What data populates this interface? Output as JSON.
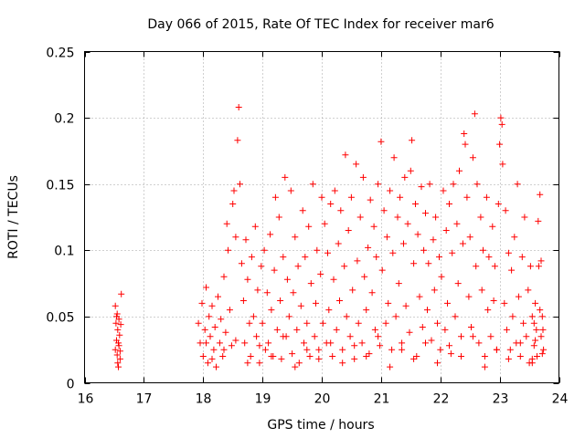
{
  "chart_data": {
    "type": "scatter",
    "title": "Day 066 of 2015, Rate Of TEC Index for receiver mar6",
    "xlabel": "GPS time / hours",
    "ylabel": "ROTI / TECUs",
    "xlim": [
      16,
      24
    ],
    "ylim": [
      0,
      0.25
    ],
    "x_ticks": [
      "16",
      "17",
      "18",
      "19",
      "20",
      "21",
      "22",
      "23",
      "24"
    ],
    "y_ticks": [
      "0",
      "0.05",
      "0.1",
      "0.15",
      "0.2",
      "0.25"
    ],
    "grid": true,
    "marker": "+",
    "series_color": "#ff0000",
    "series": [
      {
        "name": "ROTI",
        "points": [
          [
            16.52,
            0.058
          ],
          [
            16.53,
            0.045
          ],
          [
            16.54,
            0.032
          ],
          [
            16.55,
            0.052
          ],
          [
            16.55,
            0.021
          ],
          [
            16.56,
            0.04
          ],
          [
            16.57,
            0.012
          ],
          [
            16.58,
            0.048
          ],
          [
            16.58,
            0.028
          ],
          [
            16.59,
            0.036
          ],
          [
            16.6,
            0.018
          ],
          [
            16.61,
            0.044
          ],
          [
            16.62,
            0.067
          ],
          [
            16.52,
            0.025
          ],
          [
            16.54,
            0.05
          ],
          [
            16.57,
            0.03
          ],
          [
            16.6,
            0.024
          ],
          [
            16.56,
            0.015
          ],
          [
            17.92,
            0.045
          ],
          [
            17.95,
            0.03
          ],
          [
            17.98,
            0.06
          ],
          [
            18.0,
            0.02
          ],
          [
            18.03,
            0.04
          ],
          [
            18.05,
            0.072
          ],
          [
            18.08,
            0.015
          ],
          [
            18.1,
            0.05
          ],
          [
            18.12,
            0.035
          ],
          [
            18.15,
            0.058
          ],
          [
            18.18,
            0.025
          ],
          [
            18.2,
            0.042
          ],
          [
            18.22,
            0.012
          ],
          [
            18.25,
            0.065
          ],
          [
            18.28,
            0.03
          ],
          [
            18.3,
            0.048
          ],
          [
            18.33,
            0.02
          ],
          [
            18.35,
            0.08
          ],
          [
            18.38,
            0.038
          ],
          [
            18.4,
            0.12
          ],
          [
            18.42,
            0.1
          ],
          [
            18.45,
            0.055
          ],
          [
            18.48,
            0.028
          ],
          [
            18.5,
            0.135
          ],
          [
            18.52,
            0.145
          ],
          [
            18.55,
            0.11
          ],
          [
            18.58,
            0.183
          ],
          [
            18.6,
            0.208
          ],
          [
            18.62,
            0.15
          ],
          [
            18.65,
            0.09
          ],
          [
            18.68,
            0.062
          ],
          [
            18.7,
            0.03
          ],
          [
            18.72,
            0.108
          ],
          [
            18.75,
            0.078
          ],
          [
            18.78,
            0.045
          ],
          [
            18.8,
            0.02
          ],
          [
            18.82,
            0.095
          ],
          [
            18.85,
            0.05
          ],
          [
            18.88,
            0.118
          ],
          [
            18.9,
            0.035
          ],
          [
            18.92,
            0.07
          ],
          [
            18.95,
            0.015
          ],
          [
            18.98,
            0.088
          ],
          [
            19.0,
            0.045
          ],
          [
            19.03,
            0.1
          ],
          [
            19.05,
            0.025
          ],
          [
            19.08,
            0.068
          ],
          [
            19.1,
            0.03
          ],
          [
            19.13,
            0.112
          ],
          [
            19.15,
            0.055
          ],
          [
            19.18,
            0.02
          ],
          [
            19.2,
            0.085
          ],
          [
            19.22,
            0.14
          ],
          [
            19.25,
            0.04
          ],
          [
            19.28,
            0.125
          ],
          [
            19.3,
            0.062
          ],
          [
            19.32,
            0.018
          ],
          [
            19.35,
            0.095
          ],
          [
            19.38,
            0.155
          ],
          [
            19.4,
            0.035
          ],
          [
            19.42,
            0.078
          ],
          [
            19.45,
            0.05
          ],
          [
            19.48,
            0.145
          ],
          [
            19.5,
            0.022
          ],
          [
            19.52,
            0.068
          ],
          [
            19.55,
            0.11
          ],
          [
            19.58,
            0.04
          ],
          [
            19.6,
            0.088
          ],
          [
            19.62,
            0.015
          ],
          [
            19.65,
            0.058
          ],
          [
            19.68,
            0.13
          ],
          [
            19.7,
            0.03
          ],
          [
            19.72,
            0.095
          ],
          [
            19.75,
            0.045
          ],
          [
            19.78,
            0.118
          ],
          [
            19.8,
            0.02
          ],
          [
            19.82,
            0.075
          ],
          [
            19.85,
            0.15
          ],
          [
            19.88,
            0.035
          ],
          [
            19.9,
            0.06
          ],
          [
            19.92,
            0.1
          ],
          [
            19.95,
            0.025
          ],
          [
            19.98,
            0.082
          ],
          [
            20.0,
            0.14
          ],
          [
            20.02,
            0.045
          ],
          [
            20.05,
            0.12
          ],
          [
            20.08,
            0.03
          ],
          [
            20.1,
            0.098
          ],
          [
            20.12,
            0.055
          ],
          [
            20.15,
            0.135
          ],
          [
            20.18,
            0.02
          ],
          [
            20.2,
            0.078
          ],
          [
            20.22,
            0.145
          ],
          [
            20.25,
            0.04
          ],
          [
            20.28,
            0.105
          ],
          [
            20.3,
            0.062
          ],
          [
            20.32,
            0.13
          ],
          [
            20.35,
            0.025
          ],
          [
            20.38,
            0.088
          ],
          [
            20.4,
            0.172
          ],
          [
            20.42,
            0.05
          ],
          [
            20.45,
            0.115
          ],
          [
            20.48,
            0.035
          ],
          [
            20.5,
            0.14
          ],
          [
            20.52,
            0.07
          ],
          [
            20.55,
            0.018
          ],
          [
            20.58,
            0.165
          ],
          [
            20.6,
            0.092
          ],
          [
            20.62,
            0.045
          ],
          [
            20.65,
            0.125
          ],
          [
            20.68,
            0.03
          ],
          [
            20.7,
            0.155
          ],
          [
            20.72,
            0.08
          ],
          [
            20.75,
            0.055
          ],
          [
            20.78,
            0.102
          ],
          [
            20.8,
            0.022
          ],
          [
            20.82,
            0.138
          ],
          [
            20.85,
            0.068
          ],
          [
            20.88,
            0.118
          ],
          [
            20.9,
            0.04
          ],
          [
            20.92,
            0.095
          ],
          [
            20.95,
            0.15
          ],
          [
            20.98,
            0.028
          ],
          [
            21.0,
            0.182
          ],
          [
            21.02,
            0.085
          ],
          [
            21.05,
            0.13
          ],
          [
            21.08,
            0.045
          ],
          [
            21.1,
            0.11
          ],
          [
            21.12,
            0.06
          ],
          [
            21.15,
            0.145
          ],
          [
            21.18,
            0.025
          ],
          [
            21.2,
            0.098
          ],
          [
            21.22,
            0.17
          ],
          [
            21.25,
            0.05
          ],
          [
            21.28,
            0.125
          ],
          [
            21.3,
            0.075
          ],
          [
            21.32,
            0.14
          ],
          [
            21.35,
            0.03
          ],
          [
            21.38,
            0.105
          ],
          [
            21.4,
            0.155
          ],
          [
            21.42,
            0.058
          ],
          [
            21.45,
            0.12
          ],
          [
            21.48,
            0.038
          ],
          [
            21.5,
            0.16
          ],
          [
            21.52,
            0.183
          ],
          [
            21.55,
            0.09
          ],
          [
            21.58,
            0.135
          ],
          [
            21.6,
            0.02
          ],
          [
            21.62,
            0.112
          ],
          [
            21.65,
            0.065
          ],
          [
            21.68,
            0.148
          ],
          [
            21.7,
            0.042
          ],
          [
            21.72,
            0.1
          ],
          [
            21.75,
            0.128
          ],
          [
            21.78,
            0.055
          ],
          [
            21.8,
            0.09
          ],
          [
            21.82,
            0.15
          ],
          [
            21.85,
            0.032
          ],
          [
            21.88,
            0.108
          ],
          [
            21.9,
            0.07
          ],
          [
            21.92,
            0.125
          ],
          [
            21.95,
            0.045
          ],
          [
            21.98,
            0.095
          ],
          [
            22.0,
            0.025
          ],
          [
            22.02,
            0.08
          ],
          [
            22.05,
            0.145
          ],
          [
            22.08,
            0.04
          ],
          [
            22.1,
            0.115
          ],
          [
            22.12,
            0.06
          ],
          [
            22.15,
            0.135
          ],
          [
            22.18,
            0.022
          ],
          [
            22.2,
            0.098
          ],
          [
            22.22,
            0.15
          ],
          [
            22.25,
            0.05
          ],
          [
            22.28,
            0.12
          ],
          [
            22.3,
            0.075
          ],
          [
            22.32,
            0.16
          ],
          [
            22.35,
            0.035
          ],
          [
            22.38,
            0.105
          ],
          [
            22.4,
            0.188
          ],
          [
            22.42,
            0.18
          ],
          [
            22.45,
            0.14
          ],
          [
            22.48,
            0.065
          ],
          [
            22.5,
            0.11
          ],
          [
            22.52,
            0.042
          ],
          [
            22.55,
            0.17
          ],
          [
            22.58,
            0.203
          ],
          [
            22.6,
            0.088
          ],
          [
            22.62,
            0.15
          ],
          [
            22.65,
            0.03
          ],
          [
            22.68,
            0.125
          ],
          [
            22.7,
            0.07
          ],
          [
            22.72,
            0.1
          ],
          [
            22.75,
            0.02
          ],
          [
            22.78,
            0.14
          ],
          [
            22.8,
            0.055
          ],
          [
            22.82,
            0.095
          ],
          [
            22.85,
            0.035
          ],
          [
            22.88,
            0.118
          ],
          [
            22.9,
            0.062
          ],
          [
            22.92,
            0.088
          ],
          [
            22.95,
            0.025
          ],
          [
            22.98,
            0.135
          ],
          [
            23.0,
            0.18
          ],
          [
            23.02,
            0.2
          ],
          [
            23.04,
            0.195
          ],
          [
            23.05,
            0.165
          ],
          [
            23.08,
            0.06
          ],
          [
            23.1,
            0.13
          ],
          [
            23.12,
            0.04
          ],
          [
            23.15,
            0.098
          ],
          [
            23.18,
            0.025
          ],
          [
            23.2,
            0.085
          ],
          [
            23.22,
            0.05
          ],
          [
            23.25,
            0.11
          ],
          [
            23.28,
            0.03
          ],
          [
            23.3,
            0.15
          ],
          [
            23.32,
            0.065
          ],
          [
            23.35,
            0.02
          ],
          [
            23.38,
            0.095
          ],
          [
            23.4,
            0.045
          ],
          [
            23.42,
            0.125
          ],
          [
            23.45,
            0.035
          ],
          [
            23.48,
            0.07
          ],
          [
            23.5,
            0.015
          ],
          [
            23.52,
            0.088
          ],
          [
            23.55,
            0.05
          ],
          [
            23.58,
            0.028
          ],
          [
            23.6,
            0.06
          ],
          [
            23.62,
            0.04
          ],
          [
            23.65,
            0.122
          ],
          [
            23.68,
            0.142
          ],
          [
            23.7,
            0.035
          ],
          [
            23.72,
            0.05
          ],
          [
            23.74,
            0.025
          ],
          [
            23.66,
            0.088
          ],
          [
            23.6,
            0.032
          ],
          [
            23.58,
            0.045
          ],
          [
            23.55,
            0.018
          ],
          [
            23.7,
            0.092
          ],
          [
            23.73,
            0.04
          ],
          [
            23.63,
            0.02
          ],
          [
            23.68,
            0.055
          ],
          [
            18.05,
            0.03
          ],
          [
            18.15,
            0.018
          ],
          [
            18.35,
            0.025
          ],
          [
            18.55,
            0.032
          ],
          [
            18.75,
            0.015
          ],
          [
            18.95,
            0.028
          ],
          [
            19.15,
            0.02
          ],
          [
            19.35,
            0.035
          ],
          [
            19.55,
            0.012
          ],
          [
            19.75,
            0.025
          ],
          [
            19.95,
            0.018
          ],
          [
            20.15,
            0.03
          ],
          [
            20.35,
            0.015
          ],
          [
            20.55,
            0.028
          ],
          [
            20.75,
            0.02
          ],
          [
            20.95,
            0.035
          ],
          [
            21.15,
            0.012
          ],
          [
            21.35,
            0.025
          ],
          [
            21.55,
            0.018
          ],
          [
            21.75,
            0.03
          ],
          [
            21.95,
            0.015
          ],
          [
            22.15,
            0.028
          ],
          [
            22.35,
            0.02
          ],
          [
            22.55,
            0.035
          ],
          [
            22.75,
            0.012
          ],
          [
            22.95,
            0.025
          ],
          [
            23.15,
            0.018
          ],
          [
            23.35,
            0.03
          ],
          [
            23.55,
            0.015
          ],
          [
            23.72,
            0.022
          ]
        ]
      }
    ]
  }
}
